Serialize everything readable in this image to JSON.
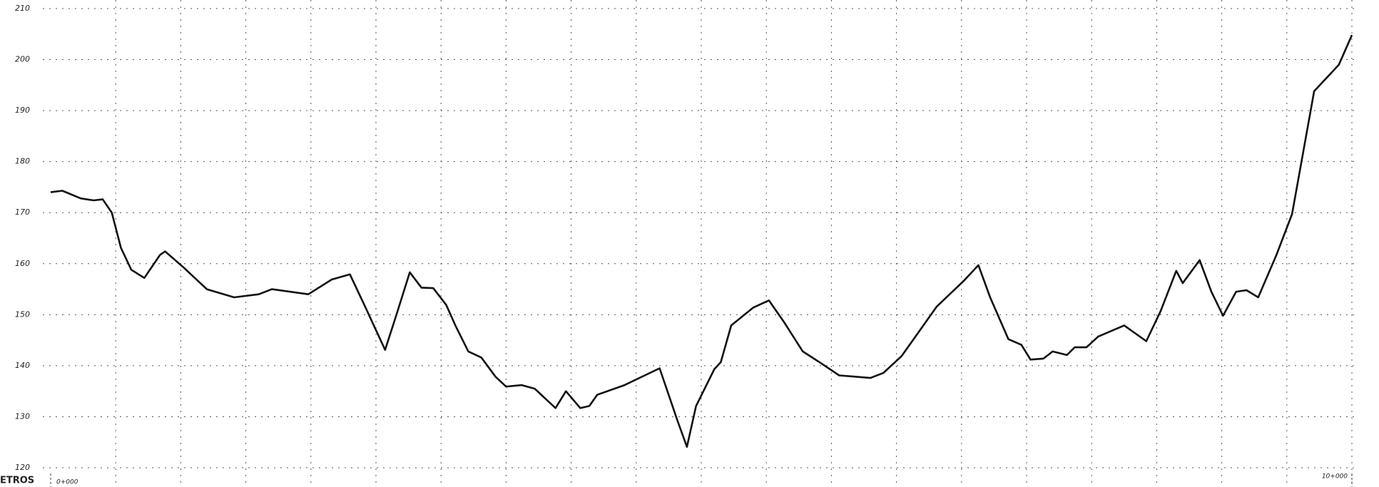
{
  "chart_data": {
    "type": "line",
    "axis_label": "ETROS",
    "color": "#111111",
    "grid": true,
    "xlim": [
      0,
      10000
    ],
    "xticks": [
      {
        "value": 0,
        "label": "0+000"
      },
      {
        "value": 10000,
        "label": "10+000"
      }
    ],
    "ylim": [
      120,
      210
    ],
    "yticks": [
      120,
      130,
      140,
      150,
      160,
      170,
      180,
      190,
      200,
      210
    ],
    "x": [
      0,
      90,
      230,
      330,
      400,
      470,
      540,
      620,
      720,
      840,
      880,
      1020,
      1200,
      1410,
      1600,
      1700,
      1980,
      2160,
      2300,
      2420,
      2570,
      2660,
      2760,
      2850,
      2940,
      3040,
      3110,
      3210,
      3310,
      3420,
      3500,
      3620,
      3720,
      3880,
      3960,
      4070,
      4140,
      4200,
      4410,
      4680,
      4820,
      4890,
      4960,
      5100,
      5150,
      5230,
      5400,
      5520,
      5640,
      5780,
      5920,
      6060,
      6160,
      6300,
      6400,
      6540,
      6810,
      7020,
      7130,
      7220,
      7360,
      7460,
      7530,
      7630,
      7700,
      7810,
      7870,
      7960,
      8050,
      8250,
      8420,
      8530,
      8650,
      8700,
      8830,
      8920,
      9010,
      9110,
      9190,
      9280,
      9420,
      9540,
      9710,
      9900,
      10000
    ],
    "values": [
      174.0,
      174.3,
      172.8,
      172.4,
      172.6,
      170.0,
      163.1,
      158.8,
      157.2,
      161.7,
      162.4,
      159.3,
      155.0,
      153.4,
      154.0,
      155.0,
      154.0,
      156.9,
      157.9,
      151.4,
      143.1,
      150.2,
      158.3,
      155.3,
      155.2,
      151.9,
      147.9,
      142.8,
      141.6,
      137.8,
      135.9,
      136.2,
      135.5,
      131.7,
      135.0,
      131.7,
      132.1,
      134.3,
      136.2,
      139.5,
      129.0,
      124.1,
      132.1,
      139.3,
      140.7,
      147.9,
      151.4,
      152.8,
      148.4,
      142.8,
      140.5,
      138.1,
      137.9,
      137.6,
      138.6,
      141.9,
      151.6,
      156.7,
      159.7,
      153.4,
      145.2,
      144.1,
      141.2,
      141.4,
      142.8,
      142.1,
      143.6,
      143.6,
      145.7,
      147.9,
      144.8,
      150.7,
      158.6,
      156.2,
      160.7,
      154.5,
      149.8,
      154.5,
      154.8,
      153.4,
      161.7,
      169.7,
      193.8,
      199.0,
      204.8
    ]
  }
}
